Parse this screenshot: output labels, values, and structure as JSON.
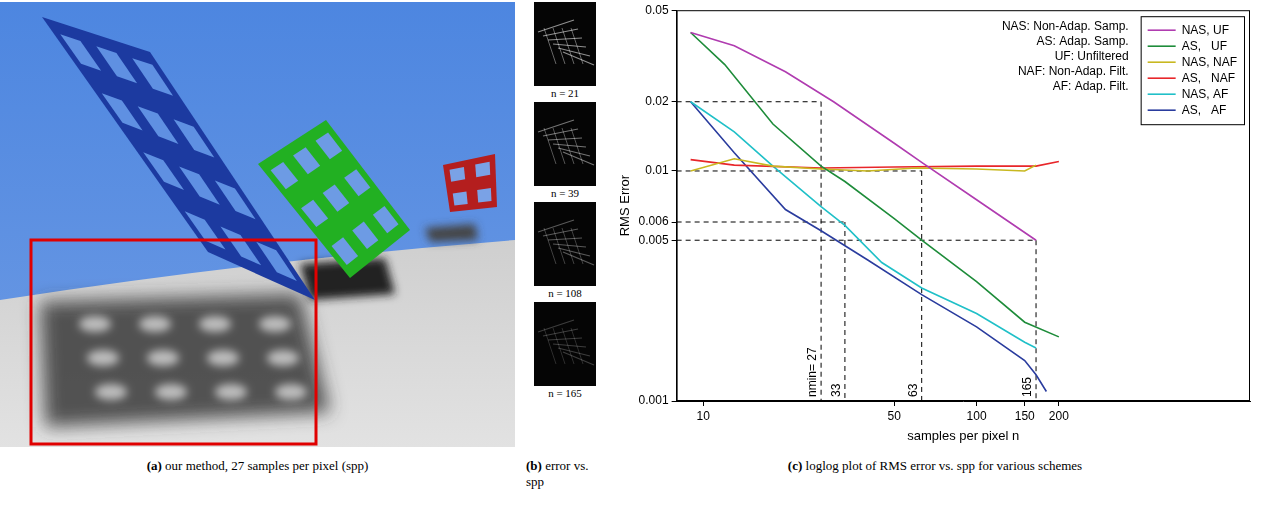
{
  "panels": [
    {
      "label": "(a)",
      "caption": "our method, 27 samples per pixel (spp)"
    },
    {
      "label": "(b)",
      "caption": "error vs. spp",
      "images": [
        "n = 21",
        "n = 39",
        "n = 108",
        "n = 165"
      ]
    },
    {
      "label": "(c)",
      "caption": "loglog plot of RMS error vs. spp for various schemes"
    }
  ],
  "chart_data": {
    "type": "line",
    "x_label": "samples per pixel n",
    "y_label": "RMS Error",
    "log": true,
    "grid": false,
    "legend": "upper right",
    "xlim": [
      8,
      1000
    ],
    "xticks": [
      10,
      50,
      100,
      150,
      200
    ],
    "ylim": [
      0.001,
      0.05
    ],
    "yticks": [
      0.001,
      0.005,
      0.006,
      0.01,
      0.02,
      0.05
    ],
    "abbreviations": [
      "NAS: Non-Adap. Samp.",
      "AS: Adap. Samp.",
      "UF: Unfiltered",
      "NAF: Non-Adap. Filt.",
      "AF: Adap. Filt."
    ],
    "reference_lines": [
      {
        "x": 27,
        "y": 0.02,
        "label": "nmin= 27"
      },
      {
        "x": 33,
        "y": 0.006,
        "label": "33"
      },
      {
        "x": 63,
        "y": 0.01,
        "label": "63"
      },
      {
        "x": 165,
        "y": 0.005,
        "label": "165"
      }
    ],
    "series": [
      {
        "name": "NAS, UF",
        "color": "#b03cb0",
        "line_style": "solid",
        "x": [
          9,
          13,
          20,
          30,
          50,
          63,
          100,
          165
        ],
        "values": [
          0.04,
          0.035,
          0.027,
          0.02,
          0.0132,
          0.0109,
          0.0075,
          0.005
        ]
      },
      {
        "name": "AS,   UF",
        "color": "#1e8c3a",
        "line_style": "solid",
        "x": [
          9,
          12,
          18,
          27,
          33,
          50,
          63,
          100,
          150,
          200
        ],
        "values": [
          0.04,
          0.029,
          0.016,
          0.0105,
          0.009,
          0.0062,
          0.005,
          0.0033,
          0.0022,
          0.0019
        ]
      },
      {
        "name": "NAS, NAF",
        "color": "#c8b820",
        "line_style": "solid",
        "x": [
          9,
          13,
          18,
          27,
          40,
          60,
          100,
          150,
          165
        ],
        "values": [
          0.01,
          0.0113,
          0.0105,
          0.0102,
          0.01,
          0.0103,
          0.0102,
          0.01,
          0.0106
        ]
      },
      {
        "name": "AS,   NAF",
        "color": "#e8262a",
        "line_style": "solid",
        "x": [
          9,
          13,
          27,
          50,
          100,
          165,
          200
        ],
        "values": [
          0.0112,
          0.0106,
          0.0103,
          0.0104,
          0.0105,
          0.0105,
          0.011
        ]
      },
      {
        "name": "NAS, AF",
        "color": "#20c0c8",
        "line_style": "solid",
        "x": [
          9,
          13,
          18,
          27,
          33,
          45,
          63,
          100,
          150,
          165
        ],
        "values": [
          0.02,
          0.0148,
          0.0105,
          0.007,
          0.0058,
          0.004,
          0.0031,
          0.0024,
          0.0018,
          0.0017
        ]
      },
      {
        "name": "AS,   AF",
        "color": "#2a3c9e",
        "line_style": "solid",
        "x": [
          9,
          13,
          20,
          27,
          40,
          63,
          100,
          150,
          165,
          180
        ],
        "values": [
          0.02,
          0.012,
          0.0068,
          0.0055,
          0.0041,
          0.0029,
          0.0021,
          0.0015,
          0.0013,
          0.0011
        ]
      }
    ]
  }
}
